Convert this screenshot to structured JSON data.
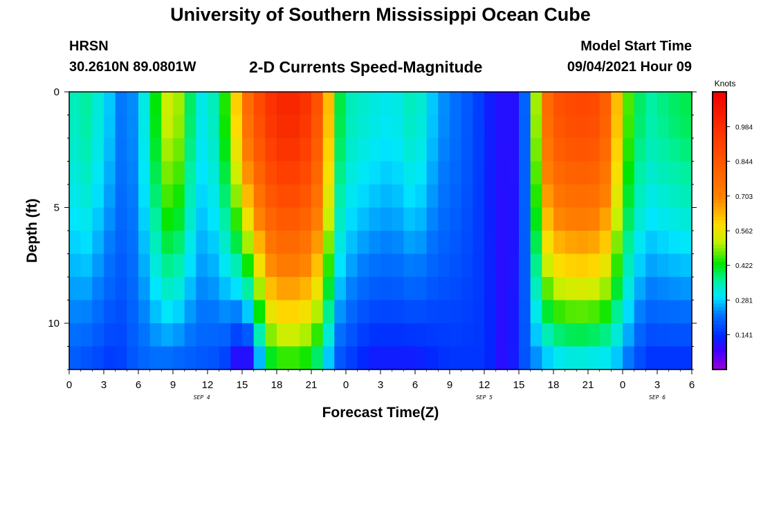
{
  "header": {
    "title": "University of Southern Mississippi Ocean Cube",
    "station": "HRSN",
    "coordinates": "30.2610N  89.0801W",
    "subtitle": "2-D Currents Speed-Magnitude",
    "model_start_label": "Model Start Time",
    "model_start_time": "09/04/2021 Hour 09"
  },
  "footer": {
    "title": "University of Southern Mississippi Ocean Cube"
  },
  "chart_data": {
    "type": "heatmap",
    "title": "2-D Currents Speed-Magnitude",
    "xlabel": "Forecast Time(Z)",
    "ylabel": "Depth (ft)",
    "ylim": [
      0,
      12
    ],
    "y_ticks": [
      0,
      5,
      10
    ],
    "x_hours": 54,
    "x_tick_labels": [
      "0",
      "3",
      "6",
      "9",
      "12",
      "15",
      "18",
      "21",
      "0",
      "3",
      "6",
      "9",
      "12",
      "15",
      "18",
      "21",
      "0",
      "3",
      "6"
    ],
    "date_labels": [
      {
        "label": "SEP 4",
        "hour": 11.5
      },
      {
        "label": "SEP 5",
        "hour": 36
      },
      {
        "label": "SEP 6",
        "hour": 51
      }
    ],
    "colorbar": {
      "label": "Knots",
      "range": [
        0,
        1.125
      ],
      "ticks": [
        "0.984",
        "0.844",
        "0.703",
        "0.562",
        "0.422",
        "0.281",
        "0.141"
      ],
      "tick_values": [
        0.984,
        0.844,
        0.703,
        0.562,
        0.422,
        0.281,
        0.141
      ]
    },
    "depth_levels": 12,
    "time_steps": 54,
    "speed_profile_surface": [
      [
        0,
        0.3
      ],
      [
        1,
        0.38
      ],
      [
        3,
        0.3
      ],
      [
        5,
        0.2
      ],
      [
        7,
        0.35
      ],
      [
        8,
        0.5
      ],
      [
        9,
        0.55
      ],
      [
        10,
        0.45
      ],
      [
        11,
        0.32
      ],
      [
        12,
        0.3
      ],
      [
        13,
        0.38
      ],
      [
        14,
        0.5
      ],
      [
        15,
        0.7
      ],
      [
        16,
        0.85
      ],
      [
        18,
        1.0
      ],
      [
        20,
        1.0
      ],
      [
        21,
        0.92
      ],
      [
        22,
        0.8
      ],
      [
        23,
        0.45
      ],
      [
        24,
        0.35
      ],
      [
        26,
        0.32
      ],
      [
        28,
        0.3
      ],
      [
        30,
        0.35
      ],
      [
        32,
        0.25
      ],
      [
        35,
        0.18
      ],
      [
        37,
        0.1
      ],
      [
        39,
        0.1
      ],
      [
        40,
        0.3
      ],
      [
        41,
        0.7
      ],
      [
        42,
        0.85
      ],
      [
        44,
        0.9
      ],
      [
        46,
        0.88
      ],
      [
        47,
        0.75
      ],
      [
        48,
        0.5
      ],
      [
        49,
        0.42
      ],
      [
        50,
        0.35
      ],
      [
        52,
        0.38
      ],
      [
        54,
        0.4
      ]
    ],
    "speed_profile_bottom": [
      [
        0,
        0.2
      ],
      [
        2,
        0.18
      ],
      [
        4,
        0.15
      ],
      [
        6,
        0.2
      ],
      [
        8,
        0.22
      ],
      [
        10,
        0.2
      ],
      [
        13,
        0.18
      ],
      [
        14,
        0.15
      ],
      [
        15,
        0.05
      ],
      [
        16,
        0.15
      ],
      [
        17,
        0.38
      ],
      [
        18,
        0.45
      ],
      [
        20,
        0.45
      ],
      [
        21,
        0.42
      ],
      [
        22,
        0.35
      ],
      [
        23,
        0.2
      ],
      [
        26,
        0.12
      ],
      [
        30,
        0.12
      ],
      [
        33,
        0.15
      ],
      [
        36,
        0.15
      ],
      [
        38,
        0.08
      ],
      [
        40,
        0.22
      ],
      [
        42,
        0.3
      ],
      [
        44,
        0.32
      ],
      [
        47,
        0.3
      ],
      [
        48,
        0.25
      ],
      [
        50,
        0.15
      ],
      [
        54,
        0.15
      ]
    ],
    "depth_shape_exponent": 1.5
  }
}
